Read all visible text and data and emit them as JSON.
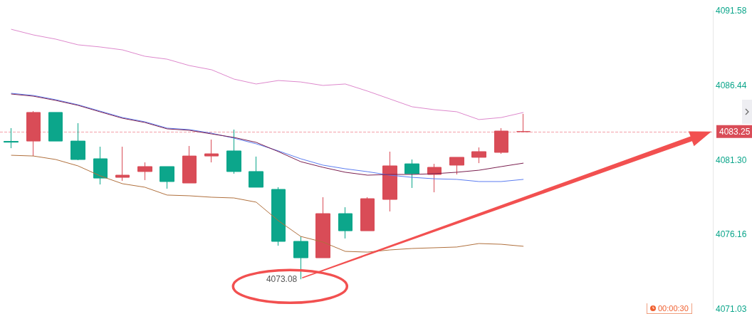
{
  "chart_data": {
    "type": "candlestick",
    "categories": [
      null,
      null,
      null,
      null,
      null,
      null,
      null,
      null,
      null,
      null,
      null,
      null,
      null,
      null,
      null,
      null,
      null,
      null,
      null,
      null,
      null,
      null,
      null,
      null
    ],
    "ohlc": [
      [
        4082.58,
        4083.49,
        4082.11,
        4082.52
      ],
      [
        4082.6,
        4084.66,
        4081.57,
        4084.57
      ],
      [
        4084.57,
        4084.57,
        4082.6,
        4082.6
      ],
      [
        4082.6,
        4083.83,
        4081.28,
        4081.33
      ],
      [
        4081.38,
        4082.21,
        4079.61,
        4080.05
      ],
      [
        4080.1,
        4082.21,
        4079.86,
        4080.25
      ],
      [
        4080.5,
        4081.13,
        4079.91,
        4080.84
      ],
      [
        4080.84,
        4080.84,
        4079.32,
        4079.81
      ],
      [
        4079.71,
        4082.26,
        4079.71,
        4081.57
      ],
      [
        4081.57,
        4082.7,
        4081.13,
        4081.72
      ],
      [
        4081.92,
        4083.39,
        4080.35,
        4080.5
      ],
      [
        4080.5,
        4081.53,
        4079.42,
        4079.42
      ],
      [
        4079.27,
        4079.42,
        4075.39,
        4075.69
      ],
      [
        4075.69,
        4076.03,
        4073.08,
        4074.56
      ],
      [
        4074.56,
        4078.73,
        4074.56,
        4077.6
      ],
      [
        4077.6,
        4078.04,
        4075.89,
        4076.42
      ],
      [
        4076.42,
        4078.73,
        4076.42,
        4078.63
      ],
      [
        4078.58,
        4081.87,
        4077.75,
        4080.89
      ],
      [
        4081.03,
        4081.33,
        4079.37,
        4080.35
      ],
      [
        4080.3,
        4081.03,
        4079.07,
        4080.79
      ],
      [
        4080.94,
        4081.48,
        4080.3,
        4081.48
      ],
      [
        4081.48,
        4082.16,
        4081.08,
        4081.87
      ],
      [
        4081.82,
        4083.49,
        4081.72,
        4083.29
      ],
      [
        4083.25,
        4084.47,
        4083.24,
        4083.25
      ]
    ],
    "colors": [
      "#0ca68b",
      "#d94c57",
      "#0ca68b",
      "#0ca68b",
      "#0ca68b",
      "#d94c57",
      "#d94c57",
      "#0ca68b",
      "#d94c57",
      "#d94c57",
      "#0ca68b",
      "#0ca68b",
      "#0ca68b",
      "#0ca68b",
      "#d94c57",
      "#0ca68b",
      "#d94c57",
      "#d94c57",
      "#0ca68b",
      "#d94c57",
      "#d94c57",
      "#d94c57",
      "#d94c57",
      "#d94c57"
    ],
    "series": [
      {
        "type": "line",
        "color": "#dd88cc",
        "values": [
          4090.3,
          4089.91,
          4089.62,
          4089.23,
          4089.08,
          4088.88,
          4088.44,
          4088.24,
          4087.8,
          4087.51,
          4086.87,
          4086.53,
          4086.77,
          4086.67,
          4086.43,
          4086.53,
          4086.04,
          4085.5,
          4084.96,
          4084.76,
          4084.62,
          4084.08,
          4084.22,
          4084.57
        ]
      },
      {
        "type": "line",
        "color": "#5b7cf0",
        "values": [
          4085.89,
          4085.74,
          4085.45,
          4085.1,
          4084.66,
          4084.22,
          4083.93,
          4083.49,
          4083.39,
          4083.14,
          4082.8,
          4082.41,
          4081.92,
          4081.38,
          4080.94,
          4080.69,
          4080.49,
          4080.25,
          4080.1,
          4080.0,
          4079.96,
          4079.81,
          4079.81,
          4079.96
        ]
      },
      {
        "type": "line",
        "color": "#7a1f4f",
        "values": [
          4085.84,
          4085.69,
          4085.4,
          4085.06,
          4084.61,
          4084.17,
          4083.88,
          4083.44,
          4083.34,
          4083.09,
          4082.85,
          4082.51,
          4081.87,
          4081.18,
          4080.79,
          4080.45,
          4080.25,
          4080.3,
          4080.3,
          4080.35,
          4080.45,
          4080.59,
          4080.84,
          4081.08
        ]
      },
      {
        "type": "line",
        "color": "#b0703d",
        "values": [
          4081.62,
          4081.57,
          4081.33,
          4080.89,
          4080.2,
          4079.66,
          4079.42,
          4078.88,
          4078.83,
          4078.73,
          4078.68,
          4078.39,
          4077.11,
          4076.03,
          4075.64,
          4075.0,
          4074.95,
          4075.1,
          4075.2,
          4075.25,
          4075.3,
          4075.54,
          4075.49,
          4075.35
        ]
      }
    ],
    "ylim": [
      4071.03,
      4091.58
    ],
    "yticks": [
      4071.03,
      4076.16,
      {
        "value": 4081.3,
        "label": "4081.30"
      },
      4086.44,
      4091.58
    ],
    "ref_lines": [
      {
        "axis": "y",
        "value": 4083.25,
        "label": "4083.25",
        "color": "#f4a0a8",
        "line_style": "dashed"
      }
    ],
    "annotations": [
      "4073.08",
      "00:00:30"
    ],
    "grid": false,
    "marker": "none",
    "line_style": "solid"
  }
}
